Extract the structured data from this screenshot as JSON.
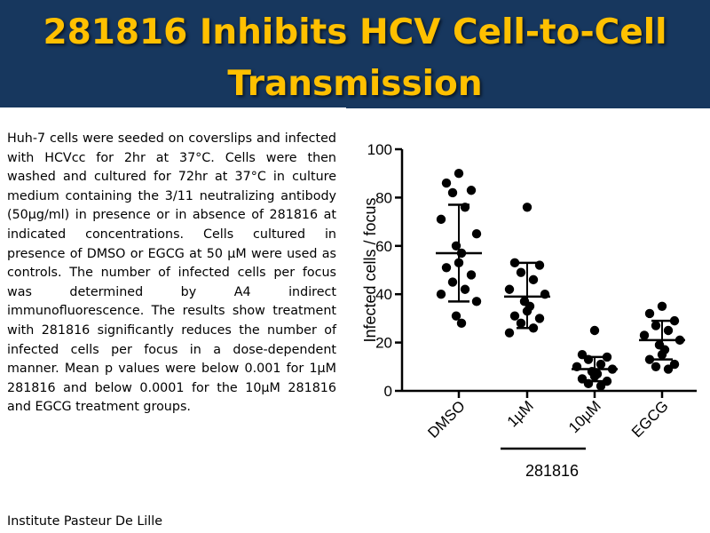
{
  "slide": {
    "title_line1": "281816 Inhibits HCV Cell-to-Cell",
    "title_line2": "Transmission",
    "body": "Huh-7 cells were seeded on coverslips and infected with HCVcc for 2hr at 37°C. Cells were then washed and cultured for 72hr at 37°C in culture medium containing the 3/11 neutralizing antibody (50µg/ml) in presence or in absence of 281816 at indicated concentrations. Cells cultured in presence of DMSO or EGCG at 50 µM were used as controls. The number of infected cells per focus was determined by A4 indirect immunofluorescence. The results show treatment with 281816 significantly reduces the number of infected cells per focus in a dose-dependent manner. Mean p values were below 0.001 for 1µM 281816 and below 0.0001 for the 10µM 281816 and EGCG treatment groups.",
    "credit": "Institute Pasteur De Lille"
  },
  "colors": {
    "title_bg": "#17375e",
    "title_text": "#ffc000",
    "marker": "#000000"
  },
  "chart_data": {
    "type": "scatter",
    "ylabel": "Infected cells / focus",
    "ylim": [
      0,
      100
    ],
    "yticks": [
      0,
      20,
      40,
      60,
      80,
      100
    ],
    "categories": [
      "DMSO",
      "1µM",
      "10µM",
      "EGCG"
    ],
    "group_bracket": {
      "label": "281816",
      "spans": [
        "1µM",
        "10µM"
      ]
    },
    "series": [
      {
        "name": "DMSO",
        "mean": 57,
        "sd_low": 37,
        "sd_high": 77,
        "values": [
          90,
          86,
          83,
          82,
          76,
          71,
          65,
          60,
          57,
          53,
          51,
          48,
          45,
          42,
          40,
          37,
          31,
          28
        ]
      },
      {
        "name": "1µM",
        "mean": 39,
        "sd_low": 26,
        "sd_high": 53,
        "values": [
          76,
          53,
          52,
          49,
          46,
          42,
          40,
          37,
          35,
          33,
          31,
          30,
          28,
          26,
          24
        ]
      },
      {
        "name": "10µM",
        "mean": 9,
        "sd_low": 4,
        "sd_high": 14,
        "values": [
          25,
          15,
          14,
          13,
          11,
          10,
          9,
          8,
          7,
          6,
          5,
          4,
          3,
          2
        ]
      },
      {
        "name": "EGCG",
        "mean": 21,
        "sd_low": 13,
        "sd_high": 29,
        "values": [
          35,
          32,
          29,
          27,
          25,
          23,
          21,
          19,
          17,
          15,
          13,
          11,
          10,
          9
        ]
      }
    ]
  }
}
